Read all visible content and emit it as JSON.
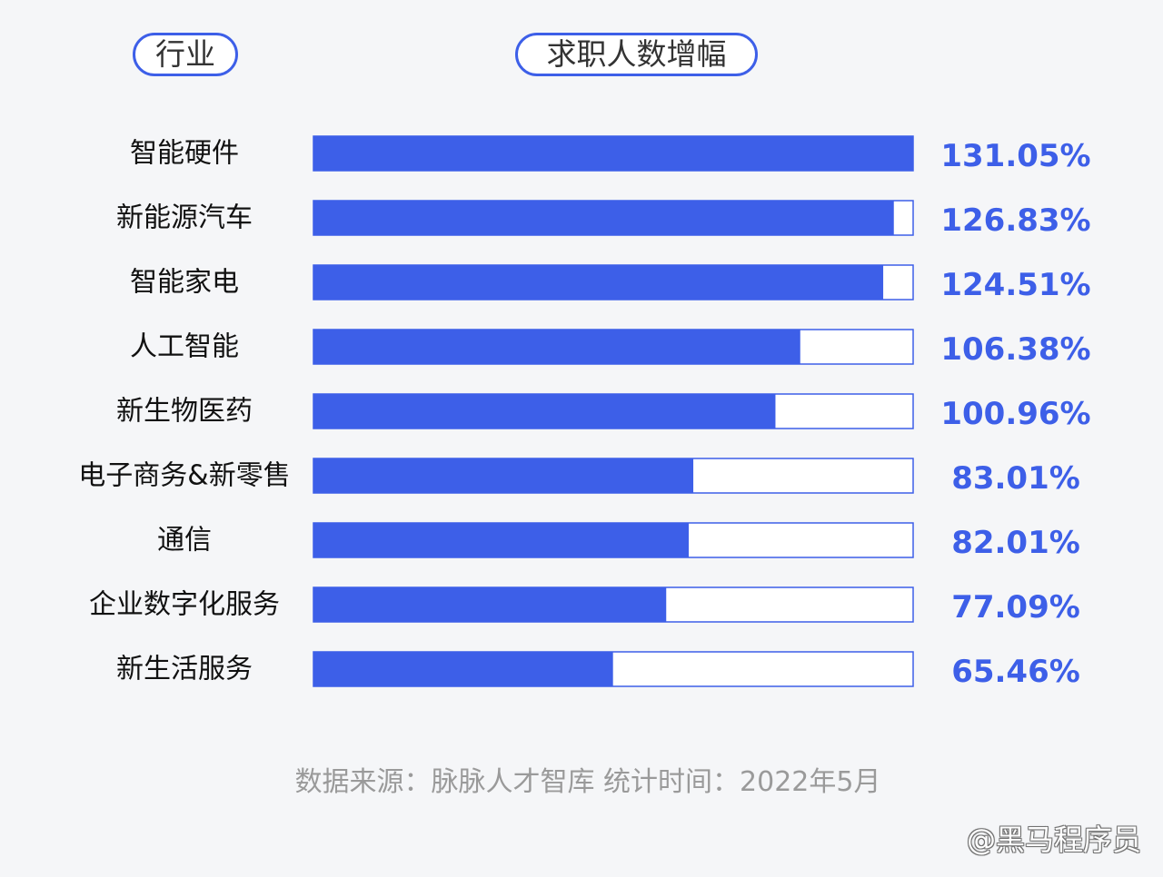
{
  "headers": {
    "industry": "行业",
    "growth": "求职人数增幅"
  },
  "chart_data": {
    "type": "bar",
    "orientation": "horizontal",
    "title": "",
    "xlabel": "",
    "ylabel": "",
    "categories": [
      "智能硬件",
      "新能源汽车",
      "智能家电",
      "人工智能",
      "新生物医药",
      "电子商务&新零售",
      "通信",
      "企业数字化服务",
      "新生活服务"
    ],
    "values": [
      131.05,
      126.83,
      124.51,
      106.38,
      100.96,
      83.01,
      82.01,
      77.09,
      65.46
    ],
    "value_labels": [
      "131.05%",
      "126.83%",
      "124.51%",
      "106.38%",
      "100.96%",
      "83.01%",
      "82.01%",
      "77.09%",
      "65.46%"
    ],
    "xlim": [
      0,
      131.05
    ],
    "grid": false,
    "colors": {
      "bar": "#3d5fe8",
      "track": "#ffffff",
      "border": "#3d5fe8",
      "value_text": "#3d5fe8"
    }
  },
  "source": "数据来源：脉脉人才智库    统计时间：2022年5月",
  "watermark": "@黑马程序员"
}
